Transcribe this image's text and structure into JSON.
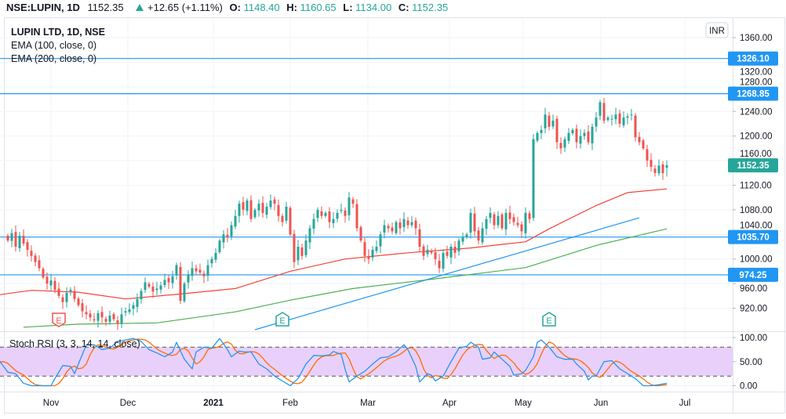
{
  "header": {
    "symbol": "NSE:LUPIN, 1D",
    "last": "1152.35",
    "change": "+12.65 (+1.11%)",
    "o_label": "O:",
    "o": "1148.40",
    "h_label": "H:",
    "h": "1160.65",
    "l_label": "L:",
    "l": "1134.00",
    "c_label": "C:",
    "c": "1152.35",
    "direction_icon": "triangle-up-icon"
  },
  "legend": {
    "title": "LUPIN LTD, 1D, NSE",
    "ema100": "EMA (100, close, 0)",
    "ema200": "EMA (200, close, 0)",
    "stoch": "Stoch RSI (3, 3, 14, 14, close)"
  },
  "currency_badge": "INR",
  "colors": {
    "up": "#26a69a",
    "down": "#ef5350",
    "hline": "#2196f3",
    "ema100": "#f44336",
    "ema200": "#4caf50",
    "trend": "#2196f3",
    "stoch_k": "#2196f3",
    "stoch_d": "#ff6d00",
    "stoch_band": "#e9d0fb",
    "grid": "#f0f3fa",
    "border": "#e0e3eb"
  },
  "chart_data": [
    {
      "type": "candlestick",
      "title": "LUPIN LTD, 1D, NSE",
      "ylim": [
        882,
        1385
      ],
      "price_ticks": [
        "920.00",
        "960.00",
        "1000.00",
        "1040.00",
        "1080.00",
        "1120.00",
        "1160.00",
        "1200.00",
        "1240.00",
        "1280.00",
        "1320.00",
        "1360.00"
      ],
      "time_ticks": [
        {
          "label": "Nov",
          "bar": 11
        },
        {
          "label": "Dec",
          "bar": 30.6
        },
        {
          "label": "2021",
          "bar": 52.4
        },
        {
          "label": "Feb",
          "bar": 72
        },
        {
          "label": "Mar",
          "bar": 91.8
        },
        {
          "label": "Apr",
          "bar": 112.6
        },
        {
          "label": "May",
          "bar": 131.4
        },
        {
          "label": "Jun",
          "bar": 151.2
        },
        {
          "label": "Jul",
          "bar": 172.6
        }
      ],
      "closes": [
        1030,
        1042,
        1020,
        1038,
        1025,
        1015,
        1005,
        995,
        985,
        970,
        960,
        965,
        950,
        940,
        930,
        945,
        950,
        935,
        925,
        915,
        910,
        905,
        900,
        912,
        905,
        898,
        908,
        902,
        895,
        910,
        915,
        918,
        925,
        935,
        948,
        962,
        955,
        947,
        952,
        957,
        966,
        962,
        972,
        990,
        932,
        960,
        975,
        985,
        980,
        978,
        972,
        990,
        1000,
        1010,
        1030,
        1040,
        1035,
        1055,
        1070,
        1090,
        1080,
        1095,
        1065,
        1080,
        1090,
        1075,
        1085,
        1095,
        1090,
        1070,
        1060,
        1085,
        1040,
        995,
        1020,
        1005,
        1030,
        1050,
        1065,
        1080,
        1070,
        1075,
        1060,
        1065,
        1075,
        1080,
        1070,
        1100,
        1090,
        1050,
        1030,
        1005,
        1000,
        1015,
        1020,
        1040,
        1055,
        1050,
        1045,
        1060,
        1050,
        1065,
        1055,
        1060,
        1050,
        1020,
        1005,
        1015,
        1010,
        1000,
        985,
        1010,
        1005,
        1020,
        1010,
        1030,
        1035,
        1040,
        1075,
        1045,
        1030,
        1050,
        1065,
        1075,
        1055,
        1070,
        1050,
        1075,
        1065,
        1060,
        1055,
        1045,
        1075,
        1065,
        1195,
        1205,
        1210,
        1235,
        1215,
        1225,
        1190,
        1180,
        1195,
        1205,
        1210,
        1190,
        1200,
        1205,
        1190,
        1215,
        1230,
        1255,
        1225,
        1230,
        1228,
        1235,
        1220,
        1230,
        1232,
        1235,
        1198,
        1190,
        1180,
        1160,
        1150,
        1140,
        1152,
        1139.7,
        1152.35
      ],
      "last_ohlc": {
        "open": 1148.4,
        "high": 1160.65,
        "low": 1134.0,
        "close": 1152.35
      },
      "ema100": [
        [
          -2,
          942
        ],
        [
          6,
          949
        ],
        [
          18,
          946
        ],
        [
          30,
          935
        ],
        [
          44,
          943
        ],
        [
          58,
          952
        ],
        [
          72,
          980
        ],
        [
          86,
          1000
        ],
        [
          102,
          1010
        ],
        [
          118,
          1018
        ],
        [
          132,
          1028
        ],
        [
          138,
          1049
        ],
        [
          150,
          1087
        ],
        [
          158,
          1108
        ],
        [
          168,
          1114
        ]
      ],
      "ema200": [
        [
          4,
          889
        ],
        [
          18,
          894
        ],
        [
          38,
          896
        ],
        [
          58,
          914
        ],
        [
          72,
          933
        ],
        [
          88,
          952
        ],
        [
          108,
          967
        ],
        [
          132,
          986
        ],
        [
          150,
          1022
        ],
        [
          168,
          1049
        ]
      ],
      "trendline": [
        [
          63,
          885
        ],
        [
          161,
          1067
        ]
      ],
      "horizontal_levels": [
        {
          "label": "1326.10",
          "price": 1326.1
        },
        {
          "label": "1268.85",
          "price": 1268.85
        },
        {
          "label": "1035.70",
          "price": 1035.7
        },
        {
          "label": "974.25",
          "price": 974.25
        }
      ],
      "last_price_tag": {
        "label": "1152.35",
        "price": 1152.35
      },
      "earnings_markers": [
        {
          "label": "E",
          "bar": 13,
          "kind": "down"
        },
        {
          "label": "E",
          "bar": 70,
          "kind": "up"
        },
        {
          "label": "E",
          "bar": 138,
          "kind": "up"
        }
      ]
    },
    {
      "type": "line",
      "title": "Stoch RSI (3, 3, 14, 14, close)",
      "ylim": [
        0,
        100
      ],
      "bands": [
        20,
        80
      ],
      "ticks": [
        "100.00",
        "50.00",
        "0.00"
      ],
      "k": [
        [
          -2,
          50
        ],
        [
          0,
          28
        ],
        [
          2,
          25
        ],
        [
          4,
          5
        ],
        [
          6,
          0
        ],
        [
          8,
          0
        ],
        [
          10,
          0
        ],
        [
          11,
          0
        ],
        [
          12,
          15
        ],
        [
          14,
          42
        ],
        [
          16,
          40
        ],
        [
          17,
          25
        ],
        [
          18,
          45
        ],
        [
          20,
          85
        ],
        [
          22,
          85
        ],
        [
          24,
          75
        ],
        [
          26,
          78
        ],
        [
          28,
          92
        ],
        [
          30,
          95
        ],
        [
          32,
          98
        ],
        [
          34,
          92
        ],
        [
          36,
          75
        ],
        [
          38,
          68
        ],
        [
          40,
          60
        ],
        [
          42,
          70
        ],
        [
          43,
          90
        ],
        [
          45,
          55
        ],
        [
          47,
          35
        ],
        [
          48,
          70
        ],
        [
          50,
          80
        ],
        [
          52,
          78
        ],
        [
          54,
          98
        ],
        [
          56,
          75
        ],
        [
          57,
          60
        ],
        [
          59,
          72
        ],
        [
          60,
          70
        ],
        [
          62,
          70
        ],
        [
          64,
          45
        ],
        [
          66,
          35
        ],
        [
          68,
          20
        ],
        [
          70,
          10
        ],
        [
          72,
          0
        ],
        [
          74,
          15
        ],
        [
          76,
          45
        ],
        [
          78,
          63
        ],
        [
          80,
          62
        ],
        [
          82,
          64
        ],
        [
          83,
          71
        ],
        [
          85,
          65
        ],
        [
          86,
          34
        ],
        [
          87,
          8
        ],
        [
          89,
          20
        ],
        [
          91,
          30
        ],
        [
          93,
          45
        ],
        [
          95,
          58
        ],
        [
          97,
          60
        ],
        [
          99,
          70
        ],
        [
          100,
          78
        ],
        [
          101,
          85
        ],
        [
          102,
          75
        ],
        [
          104,
          40
        ],
        [
          105,
          8
        ],
        [
          107,
          25
        ],
        [
          108,
          22
        ],
        [
          109,
          10
        ],
        [
          111,
          20
        ],
        [
          113,
          50
        ],
        [
          115,
          78
        ],
        [
          117,
          82
        ],
        [
          118,
          90
        ],
        [
          120,
          80
        ],
        [
          121,
          55
        ],
        [
          123,
          58
        ],
        [
          124,
          70
        ],
        [
          126,
          55
        ],
        [
          128,
          40
        ],
        [
          129,
          22
        ],
        [
          131,
          25
        ],
        [
          132,
          32
        ],
        [
          134,
          60
        ],
        [
          135,
          90
        ],
        [
          136,
          95
        ],
        [
          138,
          80
        ],
        [
          140,
          60
        ],
        [
          142,
          55
        ],
        [
          144,
          55
        ],
        [
          145,
          45
        ],
        [
          147,
          30
        ],
        [
          148,
          12
        ],
        [
          149,
          20
        ],
        [
          150,
          20
        ],
        [
          152,
          50
        ],
        [
          154,
          52
        ],
        [
          156,
          35
        ],
        [
          158,
          25
        ],
        [
          160,
          15
        ],
        [
          162,
          0
        ],
        [
          164,
          0
        ],
        [
          166,
          2
        ],
        [
          168,
          5
        ]
      ]
    }
  ]
}
